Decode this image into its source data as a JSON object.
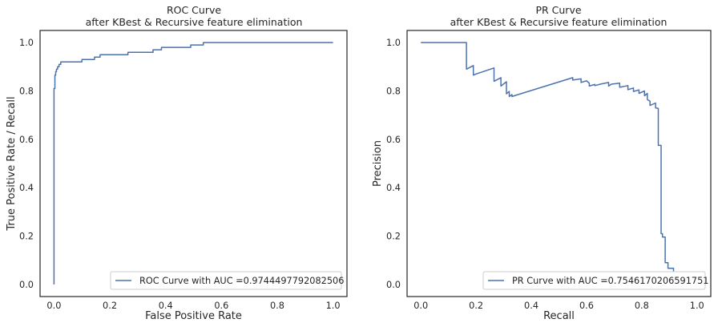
{
  "chart_data": [
    {
      "type": "line",
      "title": "ROC Curve",
      "subtitle": "after KBest & Recursive feature elimination",
      "xlabel": "False Positive Rate",
      "ylabel": "True Positive Rate / Recall",
      "xlim": [
        -0.05,
        1.05
      ],
      "ylim": [
        -0.05,
        1.05
      ],
      "xticks": [
        "0.0",
        "0.2",
        "0.4",
        "0.6",
        "0.8",
        "1.0"
      ],
      "yticks": [
        "0.0",
        "0.2",
        "0.4",
        "0.6",
        "0.8",
        "1.0"
      ],
      "grid": false,
      "legend_position": "lower-right",
      "series": [
        {
          "name": "ROC Curve with AUC =0.9744497792082506",
          "color": "#4c72b0",
          "x": [
            0.0,
            0.0,
            0.003,
            0.003,
            0.006,
            0.006,
            0.009,
            0.009,
            0.013,
            0.013,
            0.018,
            0.018,
            0.024,
            0.024,
            0.1,
            0.1,
            0.145,
            0.145,
            0.165,
            0.165,
            0.265,
            0.265,
            0.355,
            0.355,
            0.385,
            0.385,
            0.49,
            0.49,
            0.535,
            0.535,
            1.0
          ],
          "y": [
            0.0,
            0.81,
            0.81,
            0.865,
            0.865,
            0.88,
            0.88,
            0.89,
            0.89,
            0.9,
            0.9,
            0.91,
            0.91,
            0.92,
            0.92,
            0.93,
            0.93,
            0.94,
            0.94,
            0.95,
            0.95,
            0.96,
            0.96,
            0.97,
            0.97,
            0.98,
            0.98,
            0.99,
            0.99,
            1.0,
            1.0
          ]
        }
      ]
    },
    {
      "type": "line",
      "title": "PR Curve",
      "subtitle": "after KBest & Recursive feature elimination",
      "xlabel": "Recall",
      "ylabel": "Precision",
      "xlim": [
        -0.05,
        1.05
      ],
      "ylim": [
        -0.05,
        1.05
      ],
      "xticks": [
        "0.0",
        "0.2",
        "0.4",
        "0.6",
        "0.8",
        "1.0"
      ],
      "yticks": [
        "0.0",
        "0.2",
        "0.4",
        "0.6",
        "0.8",
        "1.0"
      ],
      "grid": false,
      "legend_position": "lower-right",
      "series": [
        {
          "name": "PR Curve with AUC =0.7546170206591751",
          "color": "#4c72b0",
          "x": [
            0.0,
            0.165,
            0.165,
            0.19,
            0.19,
            0.2,
            0.265,
            0.265,
            0.29,
            0.29,
            0.31,
            0.31,
            0.32,
            0.32,
            0.33,
            0.33,
            0.55,
            0.55,
            0.58,
            0.58,
            0.6,
            0.61,
            0.61,
            0.63,
            0.63,
            0.65,
            0.68,
            0.68,
            0.69,
            0.72,
            0.72,
            0.75,
            0.75,
            0.77,
            0.77,
            0.79,
            0.79,
            0.81,
            0.81,
            0.82,
            0.82,
            0.83,
            0.83,
            0.85,
            0.85,
            0.86,
            0.86,
            0.87,
            0.87,
            0.875,
            0.875,
            0.885,
            0.885,
            0.895,
            0.895,
            0.915,
            0.915
          ],
          "y": [
            1.0,
            1.0,
            0.89,
            0.905,
            0.865,
            0.87,
            0.895,
            0.84,
            0.855,
            0.82,
            0.838,
            0.788,
            0.798,
            0.777,
            0.785,
            0.777,
            0.855,
            0.845,
            0.85,
            0.835,
            0.842,
            0.832,
            0.82,
            0.827,
            0.822,
            0.828,
            0.835,
            0.82,
            0.828,
            0.832,
            0.815,
            0.822,
            0.805,
            0.812,
            0.798,
            0.804,
            0.79,
            0.8,
            0.78,
            0.79,
            0.765,
            0.757,
            0.74,
            0.75,
            0.73,
            0.728,
            0.575,
            0.575,
            0.21,
            0.21,
            0.196,
            0.196,
            0.09,
            0.09,
            0.067,
            0.067,
            0.0
          ]
        }
      ]
    }
  ]
}
